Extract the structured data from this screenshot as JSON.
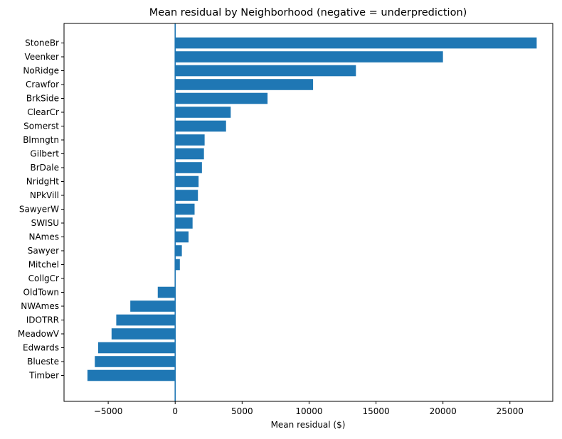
{
  "chart_data": {
    "type": "bar",
    "orientation": "horizontal",
    "title": "Mean residual by Neighborhood (negative = underprediction)",
    "xlabel": "Mean residual ($)",
    "ylabel": "",
    "xlim": [
      -8300,
      28200
    ],
    "xticks": [
      -5000,
      0,
      5000,
      10000,
      15000,
      20000,
      25000
    ],
    "grid": false,
    "zero_line": true,
    "bar_color": "#1f77b4",
    "line_color": "#1f77b4",
    "categories": [
      "StoneBr",
      "Veenker",
      "NoRidge",
      "Crawfor",
      "BrkSide",
      "ClearCr",
      "Somerst",
      "Blmngtn",
      "Gilbert",
      "BrDale",
      "NridgHt",
      "NPkVill",
      "SawyerW",
      "SWISU",
      "NAmes",
      "Sawyer",
      "Mitchel",
      "CollgCr",
      "OldTown",
      "NWAmes",
      "IDOTRR",
      "MeadowV",
      "Edwards",
      "Blueste",
      "Timber"
    ],
    "values": [
      27000,
      20000,
      13500,
      10300,
      6900,
      4150,
      3800,
      2200,
      2150,
      2000,
      1750,
      1700,
      1450,
      1300,
      1000,
      500,
      350,
      0,
      -1300,
      -3350,
      -4400,
      -4750,
      -5750,
      -6000,
      -6550
    ]
  }
}
